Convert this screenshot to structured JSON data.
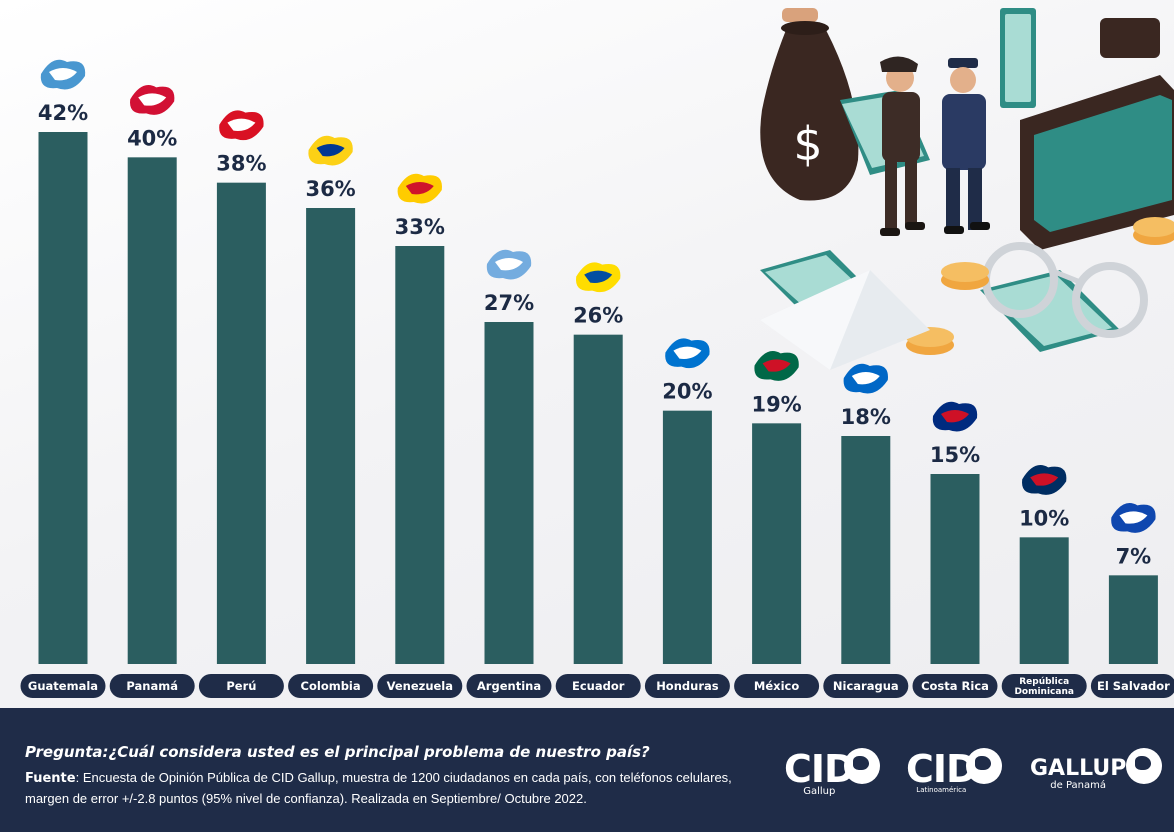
{
  "chart_data": {
    "type": "bar",
    "categories": [
      "Guatemala",
      "Panamá",
      "Perú",
      "Colombia",
      "Venezuela",
      "Argentina",
      "Ecuador",
      "Honduras",
      "México",
      "Nicaragua",
      "Costa Rica",
      "República Dominicana",
      "El Salvador"
    ],
    "values": [
      42,
      40,
      38,
      36,
      33,
      27,
      26,
      20,
      19,
      18,
      15,
      10,
      7
    ],
    "value_labels": [
      "42%",
      "40%",
      "38%",
      "36%",
      "33%",
      "27%",
      "26%",
      "20%",
      "19%",
      "18%",
      "15%",
      "10%",
      "7%"
    ],
    "title": "",
    "xlabel": "",
    "ylabel": "",
    "ylim": [
      0,
      42
    ],
    "grid": false,
    "bar_color": "#2b5e60",
    "label_pill_color": "#1f2c48"
  },
  "footer": {
    "question": "Pregunta:¿Cuál considera usted es el principal problema de nuestro país?",
    "source_label": "Fuente",
    "source_text": ": Encuesta de Opinión Pública de CID Gallup, muestra de 1200 ciudadanos en cada país, con teléfonos celulares, margen de error +/-2.8 puntos (95% nivel de confianza).  Realizada en Septiembre/ Octubre 2022.",
    "background_color": "#1f2c48"
  },
  "logos": [
    {
      "main": "CID",
      "sub": "Gallup",
      "icon": "globe-icon"
    },
    {
      "main": "CID",
      "sub": "Latinoamérica",
      "icon": "globe-icon"
    },
    {
      "main": "GALLUP",
      "sub": "de Panamá",
      "icon": "globe-icon"
    }
  ],
  "illustration": {
    "money_bag_symbol": "$",
    "icons": [
      "money-bag-icon",
      "businessman-icon",
      "police-officer-icon",
      "briefcase-icon",
      "handcuffs-icon",
      "cash-stack-icon",
      "coin-stack-icon",
      "envelope-icon",
      "flag-map-icon"
    ]
  }
}
